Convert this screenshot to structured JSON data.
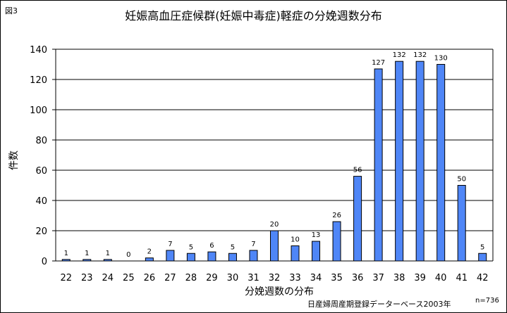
{
  "figure_label": "図3",
  "source_note": "日産婦周産期登録データーベース2003年",
  "sample_size": "n=736",
  "chart_data": {
    "type": "bar",
    "title": "妊娠高血圧症候群(妊娠中毒症)軽症の分娩週数分布",
    "xlabel": "分娩週数の分布",
    "ylabel": "件数",
    "ylim": [
      0,
      140
    ],
    "yticks": [
      0,
      20,
      40,
      60,
      80,
      100,
      120,
      140
    ],
    "grid": true,
    "bar_color": "#4f86f7",
    "categories": [
      "22",
      "23",
      "24",
      "25",
      "26",
      "27",
      "28",
      "29",
      "30",
      "31",
      "32",
      "33",
      "34",
      "35",
      "36",
      "37",
      "38",
      "39",
      "40",
      "41",
      "42"
    ],
    "values": [
      1,
      1,
      1,
      0,
      2,
      7,
      5,
      6,
      5,
      7,
      20,
      10,
      13,
      26,
      56,
      127,
      132,
      132,
      130,
      50,
      5
    ]
  }
}
